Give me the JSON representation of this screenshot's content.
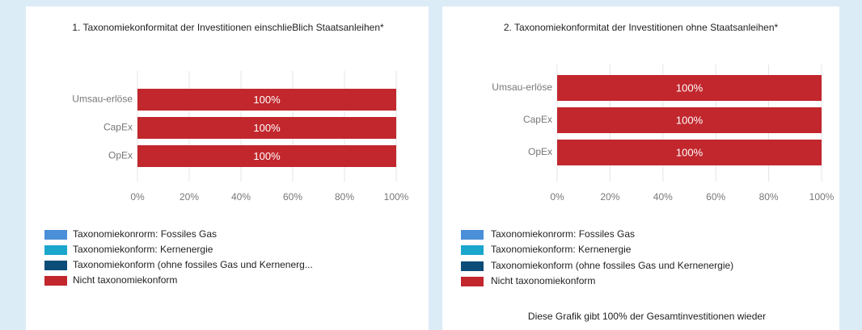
{
  "chart_data": [
    {
      "type": "bar",
      "orientation": "horizontal",
      "stacked": true,
      "title": "1. Taxonomiekonformitat der Investitionen einschlieBlich Staatsanleihen*",
      "categories": [
        "Umsau-erlöse",
        "CapEx",
        "OpEx"
      ],
      "series": [
        {
          "name": "Taxonomiekonrorm: Fossiles Gas",
          "color": "#4a8fd8",
          "values": [
            0,
            0,
            0
          ]
        },
        {
          "name": "Taxonomiekonform: Kernenergie",
          "color": "#1ba6cc",
          "values": [
            0,
            0,
            0
          ]
        },
        {
          "name": "Taxonomiekonform (ohne fossiles Gas und Kernenerg...",
          "color": "#0c4c78",
          "values": [
            0,
            0,
            0
          ]
        },
        {
          "name": "Nicht taxonomiekonform",
          "color": "#c1272d",
          "values": [
            100,
            100,
            100
          ],
          "value_labels": [
            "100%",
            "100%",
            "100%"
          ]
        }
      ],
      "xlim": [
        0,
        100
      ],
      "xticks": [
        {
          "value": 0,
          "label": "0%"
        },
        {
          "value": 20,
          "label": "20%"
        },
        {
          "value": 40,
          "label": "40%"
        },
        {
          "value": 60,
          "label": "60%"
        },
        {
          "value": 80,
          "label": "80%"
        },
        {
          "value": 100,
          "label": "100%"
        }
      ],
      "grid": true,
      "legend": "bottom"
    },
    {
      "type": "bar",
      "orientation": "horizontal",
      "stacked": true,
      "title": "2. Taxonomiekonformitat der Investitionen ohne Staatsanleihen*",
      "categories": [
        "Umsau-erlöse",
        "CapEx",
        "OpEx"
      ],
      "series": [
        {
          "name": "Taxonomiekonrorm: Fossiles Gas",
          "color": "#4a8fd8",
          "values": [
            0,
            0,
            0
          ]
        },
        {
          "name": "Taxonomiekonform: Kernenergie",
          "color": "#1ba6cc",
          "values": [
            0,
            0,
            0
          ]
        },
        {
          "name": "Taxonomiekonform (ohne fossiles Gas und Kernenergie)",
          "color": "#0c4c78",
          "values": [
            0,
            0,
            0
          ]
        },
        {
          "name": "Nicht taxonomiekonform",
          "color": "#c1272d",
          "values": [
            100,
            100,
            100
          ],
          "value_labels": [
            "100%",
            "100%",
            "100%"
          ]
        }
      ],
      "xlim": [
        0,
        100
      ],
      "xticks": [
        {
          "value": 0,
          "label": "0%"
        },
        {
          "value": 20,
          "label": "20%"
        },
        {
          "value": 40,
          "label": "40%"
        },
        {
          "value": 60,
          "label": "60%"
        },
        {
          "value": 80,
          "label": "80%"
        },
        {
          "value": 100,
          "label": "100%"
        }
      ],
      "grid": true,
      "legend": "bottom",
      "note": "Diese Grafik gibt  100% der Gesamtinvestitionen wieder"
    }
  ]
}
